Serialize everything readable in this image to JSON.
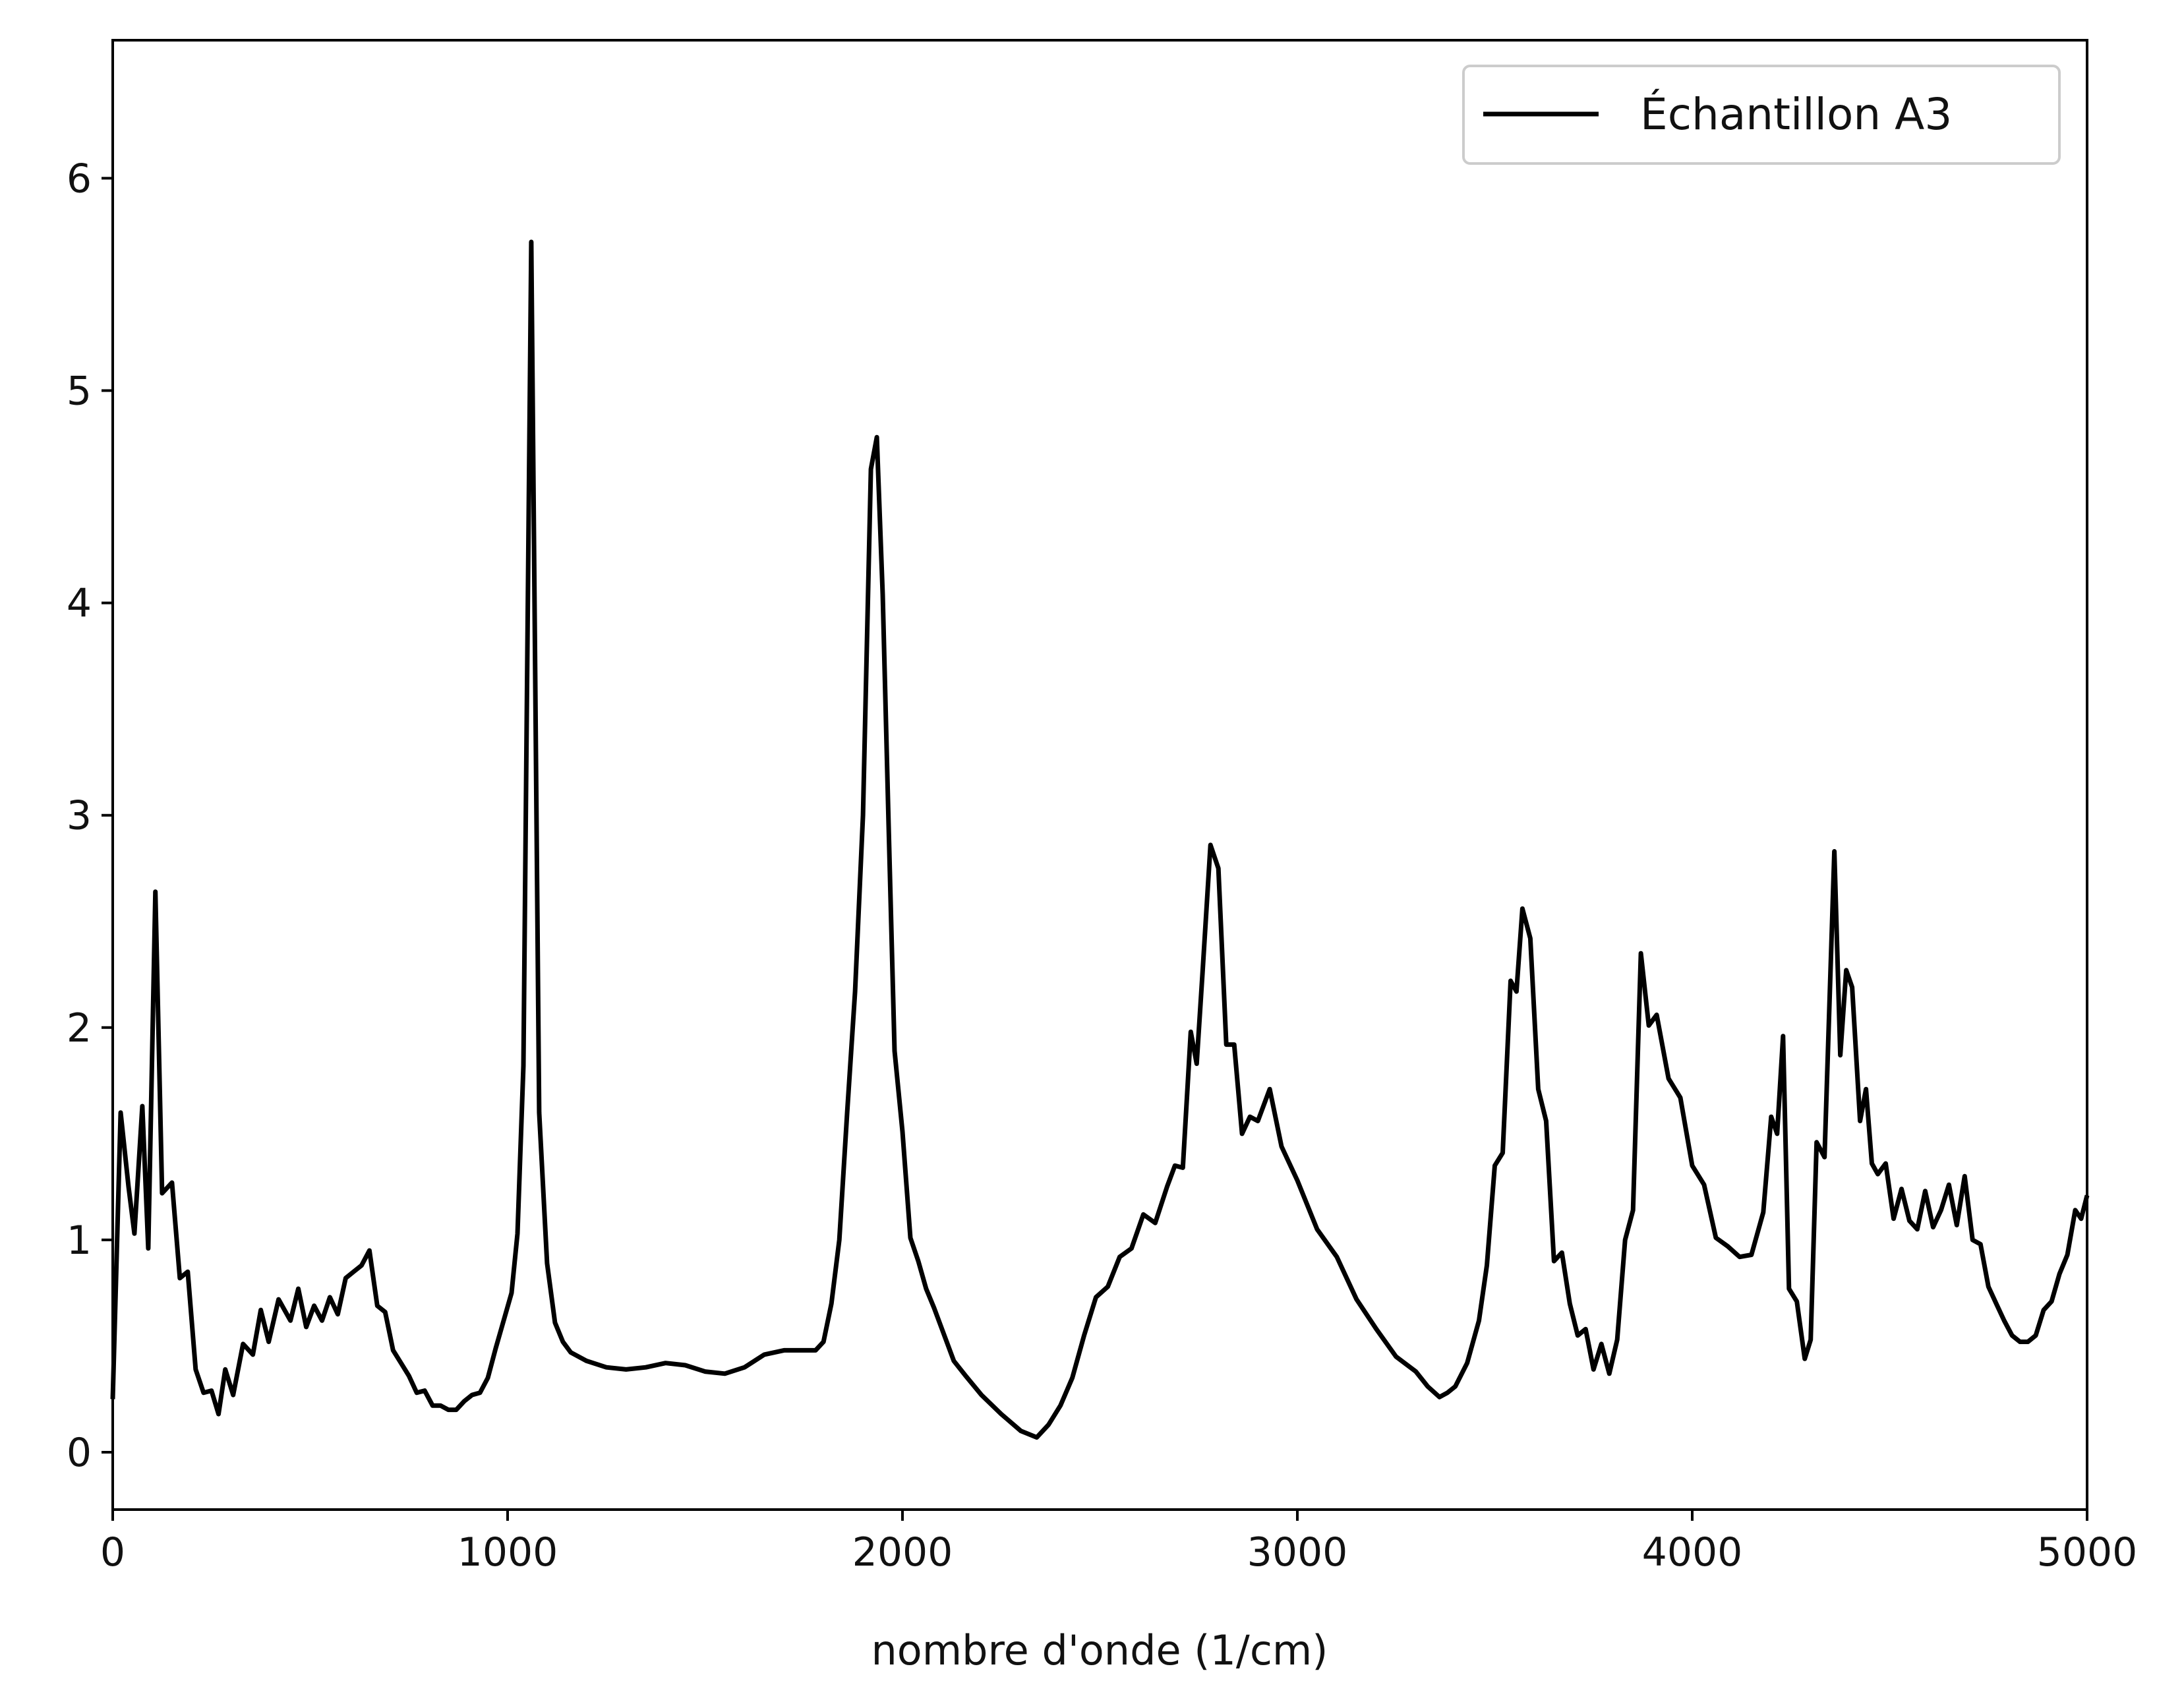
{
  "chart_data": {
    "type": "line",
    "title": "",
    "xlabel": "nombre d'onde (1/cm)",
    "ylabel": "",
    "xlim": [
      0,
      5000
    ],
    "ylim": [
      -0.27,
      6.65
    ],
    "xticks": [
      0,
      1000,
      2000,
      3000,
      4000,
      5000
    ],
    "xtick_labels": [
      "0",
      "1000",
      "2000",
      "3000",
      "4000",
      "5000"
    ],
    "yticks": [
      0,
      1,
      2,
      3,
      4,
      5,
      6
    ],
    "ytick_labels": [
      "0",
      "1",
      "2",
      "3",
      "4",
      "5",
      "6"
    ],
    "grid": false,
    "legend_position": "top-right",
    "series": [
      {
        "name": "Échantillon A3",
        "color": "#000000",
        "x": [
          0,
          20,
          40,
          55,
          75,
          90,
          108,
          125,
          150,
          170,
          190,
          210,
          230,
          250,
          268,
          285,
          305,
          330,
          355,
          375,
          395,
          420,
          450,
          470,
          490,
          510,
          530,
          550,
          570,
          590,
          610,
          630,
          650,
          670,
          690,
          710,
          730,
          750,
          770,
          790,
          810,
          830,
          850,
          870,
          890,
          910,
          930,
          950,
          970,
          990,
          1010,
          1025,
          1040,
          1060,
          1080,
          1100,
          1120,
          1140,
          1160,
          1200,
          1250,
          1300,
          1350,
          1400,
          1450,
          1500,
          1550,
          1600,
          1650,
          1700,
          1750,
          1780,
          1800,
          1820,
          1840,
          1860,
          1880,
          1900,
          1920,
          1935,
          1950,
          1965,
          1980,
          2000,
          2020,
          2040,
          2060,
          2080,
          2100,
          2130,
          2160,
          2200,
          2250,
          2300,
          2340,
          2370,
          2400,
          2430,
          2460,
          2490,
          2520,
          2550,
          2580,
          2610,
          2640,
          2670,
          2690,
          2710,
          2730,
          2745,
          2760,
          2780,
          2800,
          2820,
          2840,
          2860,
          2880,
          2900,
          2930,
          2960,
          3000,
          3050,
          3100,
          3150,
          3200,
          3250,
          3300,
          3330,
          3360,
          3380,
          3400,
          3430,
          3460,
          3480,
          3500,
          3520,
          3540,
          3555,
          3570,
          3590,
          3610,
          3630,
          3650,
          3670,
          3690,
          3710,
          3730,
          3750,
          3770,
          3790,
          3810,
          3830,
          3850,
          3870,
          3890,
          3910,
          3940,
          3970,
          4000,
          4030,
          4060,
          4090,
          4120,
          4150,
          4180,
          4200,
          4215,
          4230,
          4245,
          4265,
          4285,
          4300,
          4315,
          4335,
          4360,
          4375,
          4390,
          4405,
          4425,
          4440,
          4455,
          4470,
          4490,
          4510,
          4530,
          4550,
          4570,
          4590,
          4610,
          4630,
          4650,
          4670,
          4690,
          4710,
          4730,
          4750,
          4770,
          4790,
          4810,
          4830,
          4850,
          4870,
          4890,
          4910,
          4930,
          4950,
          4970,
          4985,
          5000
        ],
        "y": [
          0.25,
          1.6,
          1.25,
          1.03,
          1.63,
          0.96,
          2.64,
          1.22,
          1.27,
          0.82,
          0.85,
          0.39,
          0.28,
          0.29,
          0.18,
          0.39,
          0.27,
          0.51,
          0.46,
          0.67,
          0.52,
          0.72,
          0.62,
          0.77,
          0.59,
          0.69,
          0.62,
          0.73,
          0.65,
          0.82,
          0.85,
          0.88,
          0.95,
          0.69,
          0.66,
          0.48,
          0.42,
          0.36,
          0.28,
          0.29,
          0.22,
          0.22,
          0.2,
          0.2,
          0.24,
          0.27,
          0.28,
          0.35,
          0.49,
          0.62,
          0.75,
          1.03,
          1.82,
          5.7,
          1.6,
          0.89,
          0.61,
          0.52,
          0.47,
          0.43,
          0.4,
          0.39,
          0.4,
          0.42,
          0.41,
          0.38,
          0.37,
          0.4,
          0.46,
          0.48,
          0.48,
          0.48,
          0.52,
          0.7,
          1.0,
          1.6,
          2.17,
          3.0,
          4.63,
          4.78,
          4.04,
          2.95,
          1.89,
          1.51,
          1.01,
          0.9,
          0.77,
          0.68,
          0.58,
          0.43,
          0.36,
          0.27,
          0.18,
          0.1,
          0.07,
          0.13,
          0.22,
          0.35,
          0.55,
          0.73,
          0.78,
          0.92,
          0.96,
          1.12,
          1.08,
          1.25,
          1.35,
          1.34,
          1.98,
          1.83,
          2.26,
          2.86,
          2.75,
          1.92,
          1.92,
          1.5,
          1.58,
          1.56,
          1.71,
          1.44,
          1.28,
          1.05,
          0.92,
          0.72,
          0.58,
          0.45,
          0.38,
          0.31,
          0.26,
          0.28,
          0.31,
          0.42,
          0.62,
          0.88,
          1.35,
          1.41,
          2.22,
          2.17,
          2.56,
          2.42,
          1.71,
          1.56,
          0.9,
          0.94,
          0.7,
          0.55,
          0.58,
          0.39,
          0.51,
          0.37,
          0.53,
          1.0,
          1.14,
          2.35,
          2.01,
          2.06,
          1.76,
          1.67,
          1.35,
          1.26,
          1.01,
          0.97,
          0.92,
          0.93,
          1.13,
          1.58,
          1.5,
          1.96,
          0.77,
          0.71,
          0.44,
          0.53,
          1.46,
          1.39,
          2.83,
          1.87,
          2.27,
          2.19,
          1.56,
          1.71,
          1.36,
          1.31,
          1.36,
          1.1,
          1.24,
          1.09,
          1.05,
          1.23,
          1.06,
          1.14,
          1.26,
          1.07,
          1.3,
          1.0,
          0.98,
          0.78,
          0.7,
          0.62,
          0.55,
          0.52,
          0.52,
          0.55,
          0.67,
          0.71,
          0.84,
          0.93,
          1.14,
          1.1,
          1.21
        ]
      }
    ]
  }
}
